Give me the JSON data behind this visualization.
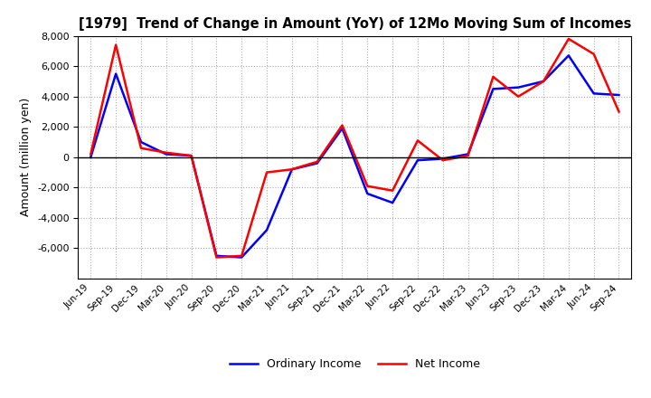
{
  "title": "[1979]  Trend of Change in Amount (YoY) of 12Mo Moving Sum of Incomes",
  "ylabel": "Amount (million yen)",
  "x_labels": [
    "Jun-19",
    "Sep-19",
    "Dec-19",
    "Mar-20",
    "Jun-20",
    "Sep-20",
    "Dec-20",
    "Mar-21",
    "Jun-21",
    "Sep-21",
    "Dec-21",
    "Mar-22",
    "Jun-22",
    "Sep-22",
    "Dec-22",
    "Mar-23",
    "Jun-23",
    "Sep-23",
    "Dec-23",
    "Mar-24",
    "Jun-24",
    "Sep-24"
  ],
  "ordinary_income": [
    0,
    5500,
    1000,
    200,
    100,
    -6500,
    -6600,
    -4800,
    -800,
    -400,
    1900,
    -2400,
    -3000,
    -200,
    -100,
    200,
    4500,
    4600,
    5000,
    6700,
    4200,
    4100
  ],
  "net_income": [
    200,
    7400,
    600,
    300,
    100,
    -6600,
    -6500,
    -1000,
    -800,
    -300,
    2100,
    -1900,
    -2200,
    1100,
    -200,
    100,
    5300,
    4000,
    5000,
    7800,
    6800,
    3000
  ],
  "ordinary_color": "#0000ff",
  "net_color": "#ff0000",
  "ylim_min": -8000,
  "ylim_max": 8000,
  "yticks": [
    -6000,
    -4000,
    -2000,
    0,
    2000,
    4000,
    6000,
    8000
  ],
  "background_color": "#ffffff",
  "grid_color": "#aaaaaa",
  "line_width": 1.8
}
